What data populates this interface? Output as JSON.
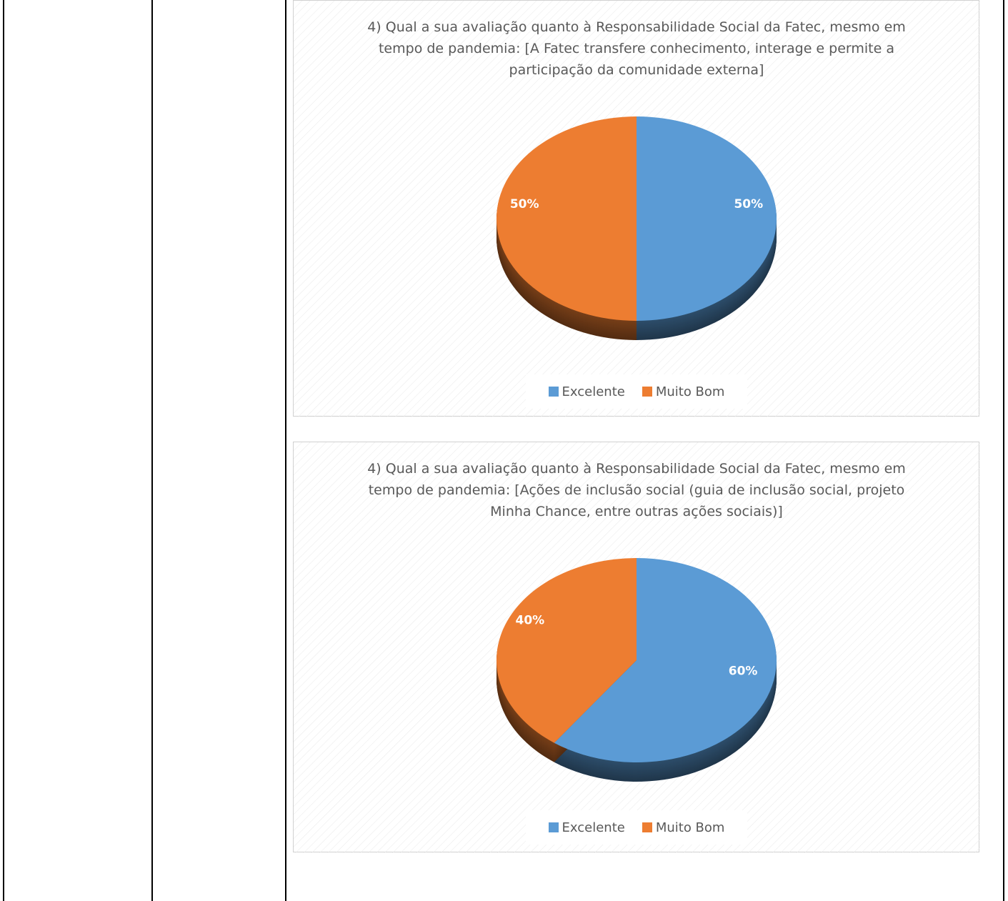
{
  "chart_data": [
    {
      "type": "pie",
      "title": "4) Qual a sua avaliação quanto à Responsabilidade Social da Fatec, mesmo em tempo de pandemia: [A Fatec transfere conhecimento, interage e permite a participação da comunidade externa]",
      "categories": [
        "Excelente",
        "Muito Bom"
      ],
      "values": [
        50,
        50
      ],
      "value_labels": [
        "50%",
        "50%"
      ],
      "colors": [
        "#5b9bd5",
        "#ed7d31"
      ],
      "legend": "bottom"
    },
    {
      "type": "pie",
      "title": "4) Qual a sua avaliação quanto à Responsabilidade Social da Fatec, mesmo em tempo de pandemia: [Ações de inclusão social (guia de inclusão social, projeto Minha Chance, entre outras ações sociais)]",
      "categories": [
        "Excelente",
        "Muito Bom"
      ],
      "values": [
        60,
        40
      ],
      "value_labels": [
        "60%",
        "40%"
      ],
      "colors": [
        "#5b9bd5",
        "#ed7d31"
      ],
      "legend": "bottom"
    }
  ]
}
